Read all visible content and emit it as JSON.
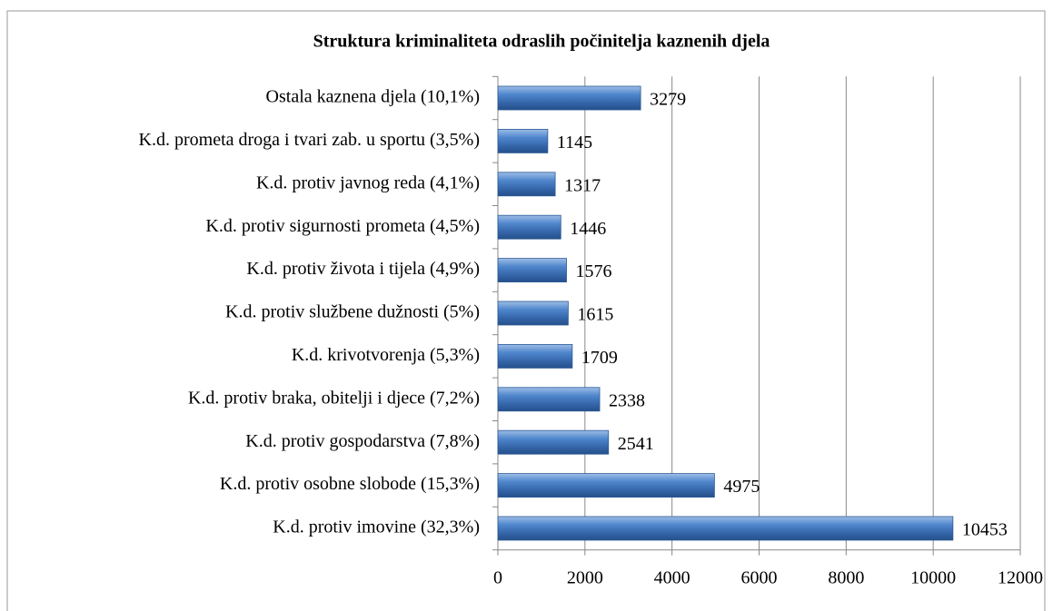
{
  "chart_data": {
    "type": "bar",
    "orientation": "horizontal",
    "title": "Struktura kriminaliteta odraslih počinitelja kaznenih djela",
    "categories": [
      "Ostala kaznena djela (10,1%)",
      "K.d. prometa droga i tvari zab. u sportu (3,5%)",
      "K.d. protiv javnog reda (4,1%)",
      "K.d. protiv sigurnosti prometa (4,5%)",
      "K.d. protiv života i tijela (4,9%)",
      "K.d. protiv službene dužnosti (5%)",
      "K.d. krivotvorenja (5,3%)",
      "K.d. protiv braka, obitelji i djece (7,2%)",
      "K.d. protiv gospodarstva (7,8%)",
      "K.d. protiv osobne slobode (15,3%)",
      "K.d. protiv imovine (32,3%)"
    ],
    "values": [
      3279,
      1145,
      1317,
      1446,
      1576,
      1615,
      1709,
      2338,
      2541,
      4975,
      10453
    ],
    "color": "#4a7ebb",
    "xlim": [
      0,
      12000
    ],
    "xticks": [
      0,
      2000,
      4000,
      6000,
      8000,
      10000,
      12000
    ],
    "grid": true
  }
}
